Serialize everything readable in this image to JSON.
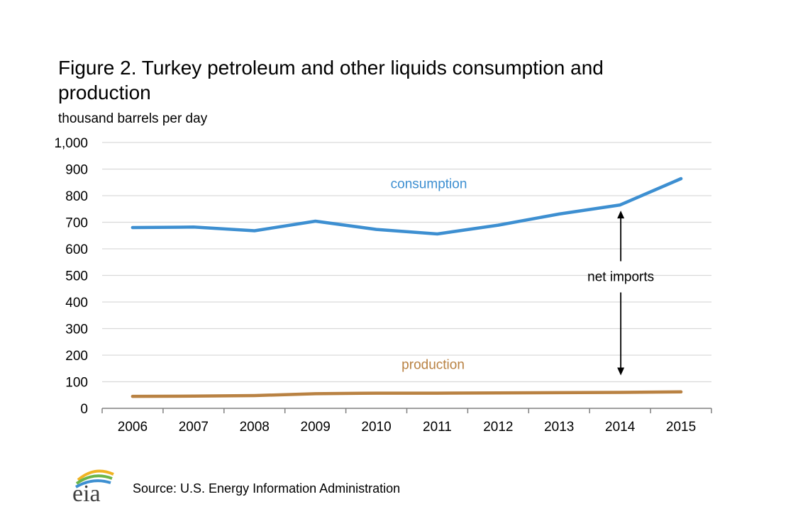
{
  "title": "Figure 2. Turkey petroleum and other liquids consumption and production",
  "source": "Source: U.S. Energy Information Administration",
  "logo_text": "eia",
  "chart_data": {
    "type": "line",
    "ylabel": "thousand barrels per day",
    "xlabel": "",
    "ylim": [
      0,
      1000
    ],
    "y_ticks": [
      0,
      100,
      200,
      300,
      400,
      500,
      600,
      700,
      800,
      900,
      1000
    ],
    "y_tick_labels": [
      "0",
      "100",
      "200",
      "300",
      "400",
      "500",
      "600",
      "700",
      "800",
      "900",
      "1,000"
    ],
    "categories": [
      "2006",
      "2007",
      "2008",
      "2009",
      "2010",
      "2011",
      "2012",
      "2013",
      "2014",
      "2015"
    ],
    "grid": true,
    "series": [
      {
        "name": "consumption",
        "color": "#3d8fd1",
        "values": [
          680,
          682,
          668,
          704,
          673,
          656,
          689,
          731,
          765,
          864
        ]
      },
      {
        "name": "production",
        "color": "#b98243",
        "values": [
          45,
          46,
          48,
          55,
          57,
          57,
          58,
          59,
          60,
          62
        ]
      }
    ],
    "annotations": [
      {
        "text": "net imports",
        "category": "2014"
      }
    ]
  }
}
